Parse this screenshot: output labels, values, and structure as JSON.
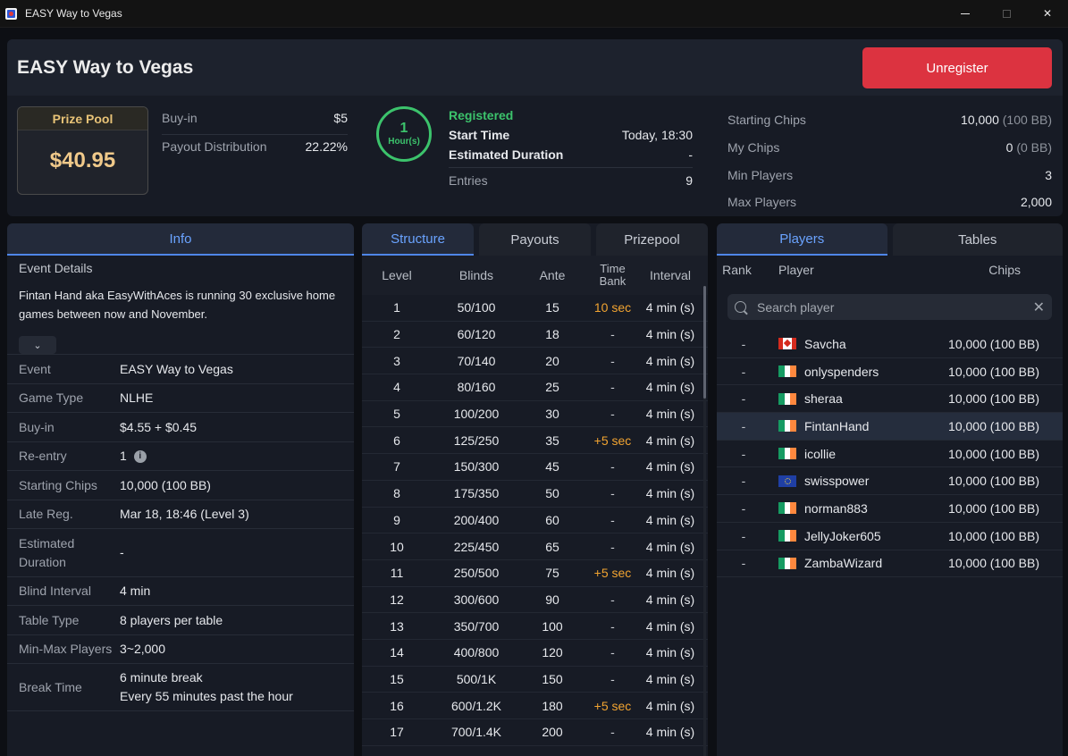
{
  "window": {
    "title": "EASY Way to Vegas"
  },
  "header": {
    "title": "EASY Way to Vegas",
    "unregister_label": "Unregister",
    "prize_pool_label": "Prize Pool",
    "prize_pool_value": "$40.95",
    "buyin_label": "Buy-in",
    "buyin_value": "$5",
    "payout_dist_label": "Payout Distribution",
    "payout_dist_value": "22.22%",
    "timer_value": "1",
    "timer_unit": "Hour(s)",
    "status": "Registered",
    "start_time_label": "Start Time",
    "start_time_value": "Today, 18:30",
    "est_duration_label": "Estimated Duration",
    "est_duration_value": "-",
    "entries_label": "Entries",
    "entries_value": "9",
    "starting_chips_label": "Starting Chips",
    "starting_chips_value": "10,000",
    "starting_chips_bb": "(100 BB)",
    "my_chips_label": "My Chips",
    "my_chips_value": "0",
    "my_chips_bb": "(0 BB)",
    "min_players_label": "Min Players",
    "min_players_value": "3",
    "max_players_label": "Max Players",
    "max_players_value": "2,000"
  },
  "info": {
    "tab_label": "Info",
    "event_details_label": "Event Details",
    "event_details_text": "Fintan Hand aka EasyWithAces is running 30 exclusive home games between now and November.",
    "rows": [
      {
        "label": "Event",
        "value": "EASY Way to Vegas"
      },
      {
        "label": "Game Type",
        "value": "NLHE"
      },
      {
        "label": "Buy-in",
        "value": "$4.55 + $0.45"
      },
      {
        "label": "Re-entry",
        "value": "1"
      },
      {
        "label": "Starting Chips",
        "value": "10,000 (100 BB)"
      },
      {
        "label": "Late Reg.",
        "value": "Mar 18, 18:46 (Level 3)"
      },
      {
        "label": "Estimated Duration",
        "value": "-"
      },
      {
        "label": "Blind Interval",
        "value": "4 min"
      },
      {
        "label": "Table Type",
        "value": "8 players per table"
      },
      {
        "label": "Min-Max Players",
        "value": "3~2,000"
      },
      {
        "label": "Break Time",
        "value": "6 minute break",
        "value2": "Every 55 minutes past the hour"
      }
    ]
  },
  "structure": {
    "tabs": [
      "Structure",
      "Payouts",
      "Prizepool"
    ],
    "headers": {
      "level": "Level",
      "blinds": "Blinds",
      "ante": "Ante",
      "time_bank_1": "Time",
      "time_bank_2": "Bank",
      "interval": "Interval"
    },
    "rows": [
      {
        "level": "1",
        "blinds": "50/100",
        "ante": "15",
        "time_bank": "10 sec",
        "interval": "4  min (s)"
      },
      {
        "level": "2",
        "blinds": "60/120",
        "ante": "18",
        "time_bank": "-",
        "interval": "4  min (s)"
      },
      {
        "level": "3",
        "blinds": "70/140",
        "ante": "20",
        "time_bank": "-",
        "interval": "4  min (s)"
      },
      {
        "level": "4",
        "blinds": "80/160",
        "ante": "25",
        "time_bank": "-",
        "interval": "4  min (s)"
      },
      {
        "level": "5",
        "blinds": "100/200",
        "ante": "30",
        "time_bank": "-",
        "interval": "4  min (s)"
      },
      {
        "level": "6",
        "blinds": "125/250",
        "ante": "35",
        "time_bank": "+5 sec",
        "interval": "4  min (s)"
      },
      {
        "level": "7",
        "blinds": "150/300",
        "ante": "45",
        "time_bank": "-",
        "interval": "4  min (s)"
      },
      {
        "level": "8",
        "blinds": "175/350",
        "ante": "50",
        "time_bank": "-",
        "interval": "4  min (s)"
      },
      {
        "level": "9",
        "blinds": "200/400",
        "ante": "60",
        "time_bank": "-",
        "interval": "4  min (s)"
      },
      {
        "level": "10",
        "blinds": "225/450",
        "ante": "65",
        "time_bank": "-",
        "interval": "4  min (s)"
      },
      {
        "level": "11",
        "blinds": "250/500",
        "ante": "75",
        "time_bank": "+5 sec",
        "interval": "4  min (s)"
      },
      {
        "level": "12",
        "blinds": "300/600",
        "ante": "90",
        "time_bank": "-",
        "interval": "4  min (s)"
      },
      {
        "level": "13",
        "blinds": "350/700",
        "ante": "100",
        "time_bank": "-",
        "interval": "4  min (s)"
      },
      {
        "level": "14",
        "blinds": "400/800",
        "ante": "120",
        "time_bank": "-",
        "interval": "4  min (s)"
      },
      {
        "level": "15",
        "blinds": "500/1K",
        "ante": "150",
        "time_bank": "-",
        "interval": "4  min (s)"
      },
      {
        "level": "16",
        "blinds": "600/1.2K",
        "ante": "180",
        "time_bank": "+5 sec",
        "interval": "4  min (s)"
      },
      {
        "level": "17",
        "blinds": "700/1.4K",
        "ante": "200",
        "time_bank": "-",
        "interval": "4  min (s)"
      }
    ]
  },
  "players": {
    "tabs": [
      "Players",
      "Tables"
    ],
    "headers": {
      "rank": "Rank",
      "player": "Player",
      "chips": "Chips"
    },
    "search_placeholder": "Search player",
    "rows": [
      {
        "rank": "-",
        "flag": "ca",
        "name": "Savcha",
        "chips": "10,000 (100 BB)"
      },
      {
        "rank": "-",
        "flag": "ie",
        "name": "onlyspenders",
        "chips": "10,000 (100 BB)"
      },
      {
        "rank": "-",
        "flag": "ie",
        "name": "sheraa",
        "chips": "10,000 (100 BB)"
      },
      {
        "rank": "-",
        "flag": "ie",
        "name": "FintanHand",
        "chips": "10,000 (100 BB)",
        "highlight": true
      },
      {
        "rank": "-",
        "flag": "ie",
        "name": "icollie",
        "chips": "10,000 (100 BB)"
      },
      {
        "rank": "-",
        "flag": "eu",
        "name": "swisspower",
        "chips": "10,000 (100 BB)"
      },
      {
        "rank": "-",
        "flag": "ie",
        "name": "norman883",
        "chips": "10,000 (100 BB)"
      },
      {
        "rank": "-",
        "flag": "ie",
        "name": "JellyJoker605",
        "chips": "10,000 (100 BB)"
      },
      {
        "rank": "-",
        "flag": "ie",
        "name": "ZambaWizard",
        "chips": "10,000 (100 BB)"
      }
    ]
  },
  "colors": {
    "accent": "#4f86e8",
    "danger": "#dc3340",
    "success": "#3cc36c",
    "gold": "#f0c98a",
    "orange": "#f2a431"
  }
}
